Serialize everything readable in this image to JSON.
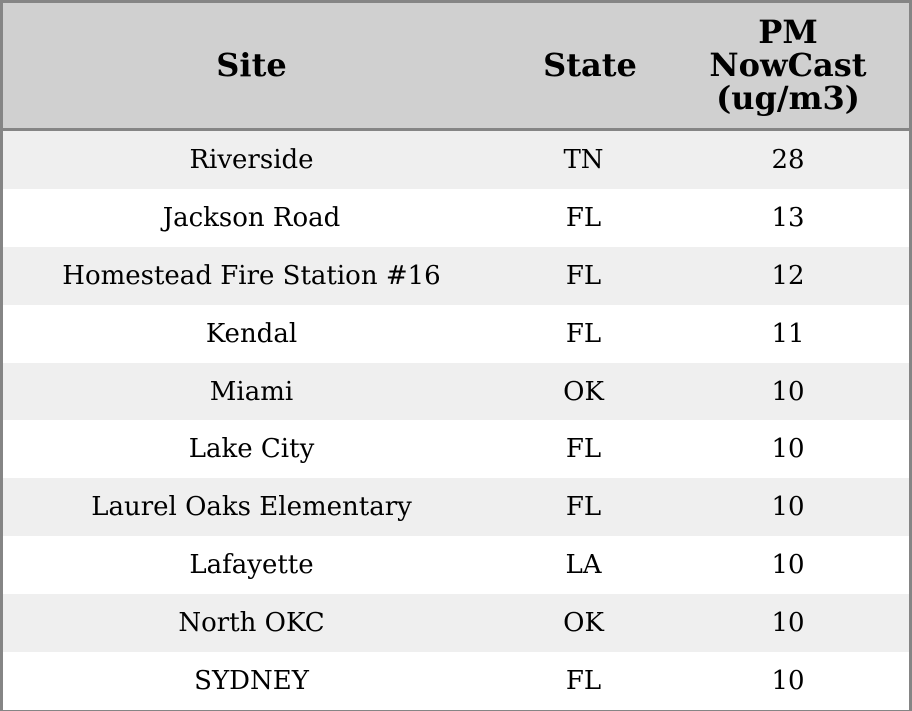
{
  "table": {
    "columns": [
      "Site",
      "State",
      "PM NowCast (ug/m3)"
    ],
    "rows": [
      [
        "Riverside",
        "TN",
        28
      ],
      [
        "Jackson Road",
        "FL",
        13
      ],
      [
        "Homestead Fire Station #16",
        "FL",
        12
      ],
      [
        "Kendal",
        "FL",
        11
      ],
      [
        "Miami",
        "OK",
        10
      ],
      [
        "Lake City",
        "FL",
        10
      ],
      [
        "Laurel Oaks Elementary",
        "FL",
        10
      ],
      [
        "Lafayette",
        "LA",
        10
      ],
      [
        "North OKC",
        "OK",
        10
      ],
      [
        "SYDNEY",
        "FL",
        10
      ]
    ]
  }
}
